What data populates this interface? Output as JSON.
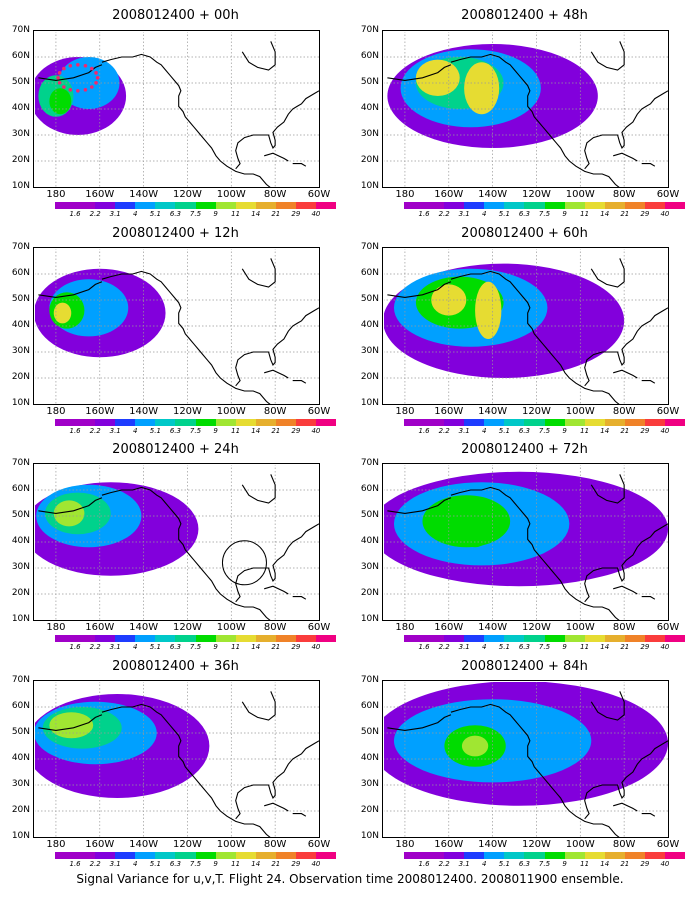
{
  "caption": "Signal Variance for u,v,T. Flight 24. Observation time 2008012400. 2008011900 ensemble.",
  "color_scale": {
    "labels": [
      "1.6",
      "2.2",
      "3.1",
      "4",
      "5.1",
      "6.3",
      "7.5",
      "9",
      "11",
      "14",
      "21",
      "29",
      "40"
    ],
    "colors": [
      "#a000c8",
      "#8200dc",
      "#1e3cff",
      "#00a0ff",
      "#00c8c8",
      "#00d28c",
      "#00dc00",
      "#a0e632",
      "#e6dc32",
      "#e6af2d",
      "#f08228",
      "#fa3c3c",
      "#f00082"
    ]
  },
  "axes": {
    "y_labels": [
      "70N",
      "60N",
      "50N",
      "40N",
      "30N",
      "20N",
      "10N"
    ],
    "x_labels": [
      "180",
      "160W",
      "140W",
      "120W",
      "100W",
      "80W",
      "60W"
    ]
  },
  "panels": [
    {
      "title": "2008012400 + 00h"
    },
    {
      "title": "2008012400 + 48h"
    },
    {
      "title": "2008012400 + 12h"
    },
    {
      "title": "2008012400 + 60h"
    },
    {
      "title": "2008012400 + 24h"
    },
    {
      "title": "2008012400 + 72h"
    },
    {
      "title": "2008012400 + 36h"
    },
    {
      "title": "2008012400 + 84h"
    }
  ]
}
